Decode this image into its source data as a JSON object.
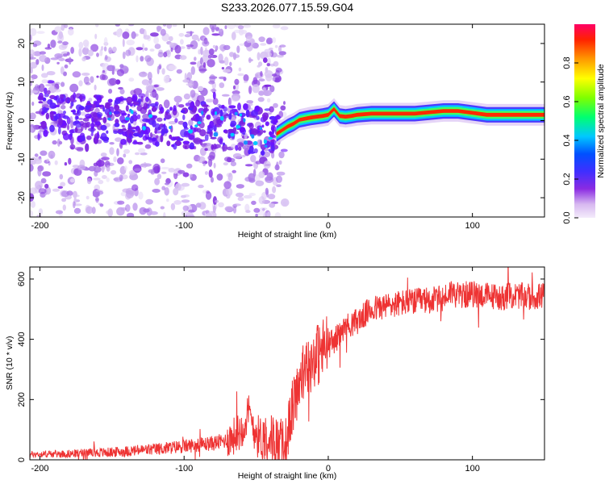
{
  "chart_data": [
    {
      "type": "heatmap",
      "title": "S233.2026.077.15.59.G04",
      "xlabel": "Height of straight line (km)",
      "ylabel": "Frequency (Hz)",
      "xlim": [
        -207,
        150
      ],
      "ylim": [
        -25,
        25
      ],
      "xticks": [
        -200,
        -100,
        0,
        100
      ],
      "yticks": [
        -20,
        -10,
        0,
        10,
        20
      ],
      "colorbar": {
        "label": "Normalized spectral amplitude",
        "range": [
          0.0,
          1.0
        ],
        "ticks": [
          0.0,
          0.2,
          0.4,
          0.6,
          0.8
        ]
      },
      "ridge": {
        "x": [
          -36,
          -32,
          -28,
          -24,
          -20,
          -16,
          -12,
          -8,
          -4,
          0,
          4,
          8,
          12,
          16,
          20,
          30,
          40,
          60,
          80,
          90,
          100,
          110,
          130,
          150
        ],
        "freq": [
          -3.5,
          -2.5,
          -1.5,
          -0.8,
          0.2,
          0.5,
          0.8,
          1.0,
          1.2,
          1.5,
          3.0,
          1.2,
          1.0,
          1.2,
          1.5,
          1.8,
          1.8,
          1.8,
          2.5,
          2.5,
          2.0,
          1.5,
          1.5,
          1.5
        ]
      }
    },
    {
      "type": "line",
      "title": "",
      "xlabel": "Height of straight line (km)",
      "ylabel": "SNR (10 * v/v)",
      "xlim": [
        -207,
        150
      ],
      "ylim": [
        0,
        640
      ],
      "xticks": [
        -200,
        -100,
        0,
        100
      ],
      "yticks": [
        0,
        200,
        400,
        600
      ],
      "series": [
        {
          "name": "SNR",
          "color": "#ee3333",
          "x": [
            -207,
            -180,
            -150,
            -120,
            -100,
            -80,
            -70,
            -62,
            -55,
            -48,
            -42,
            -36,
            -30,
            -25,
            -20,
            -15,
            -10,
            -5,
            0,
            5,
            10,
            15,
            20,
            25,
            30,
            40,
            50,
            60,
            70,
            80,
            85,
            90,
            100,
            110,
            120,
            130,
            140,
            150
          ],
          "values": [
            18,
            20,
            25,
            35,
            45,
            55,
            65,
            90,
            150,
            70,
            80,
            60,
            40,
            170,
            260,
            300,
            340,
            360,
            380,
            400,
            430,
            450,
            460,
            480,
            500,
            510,
            520,
            525,
            530,
            535,
            560,
            545,
            550,
            545,
            540,
            545,
            540,
            545
          ]
        }
      ]
    }
  ]
}
